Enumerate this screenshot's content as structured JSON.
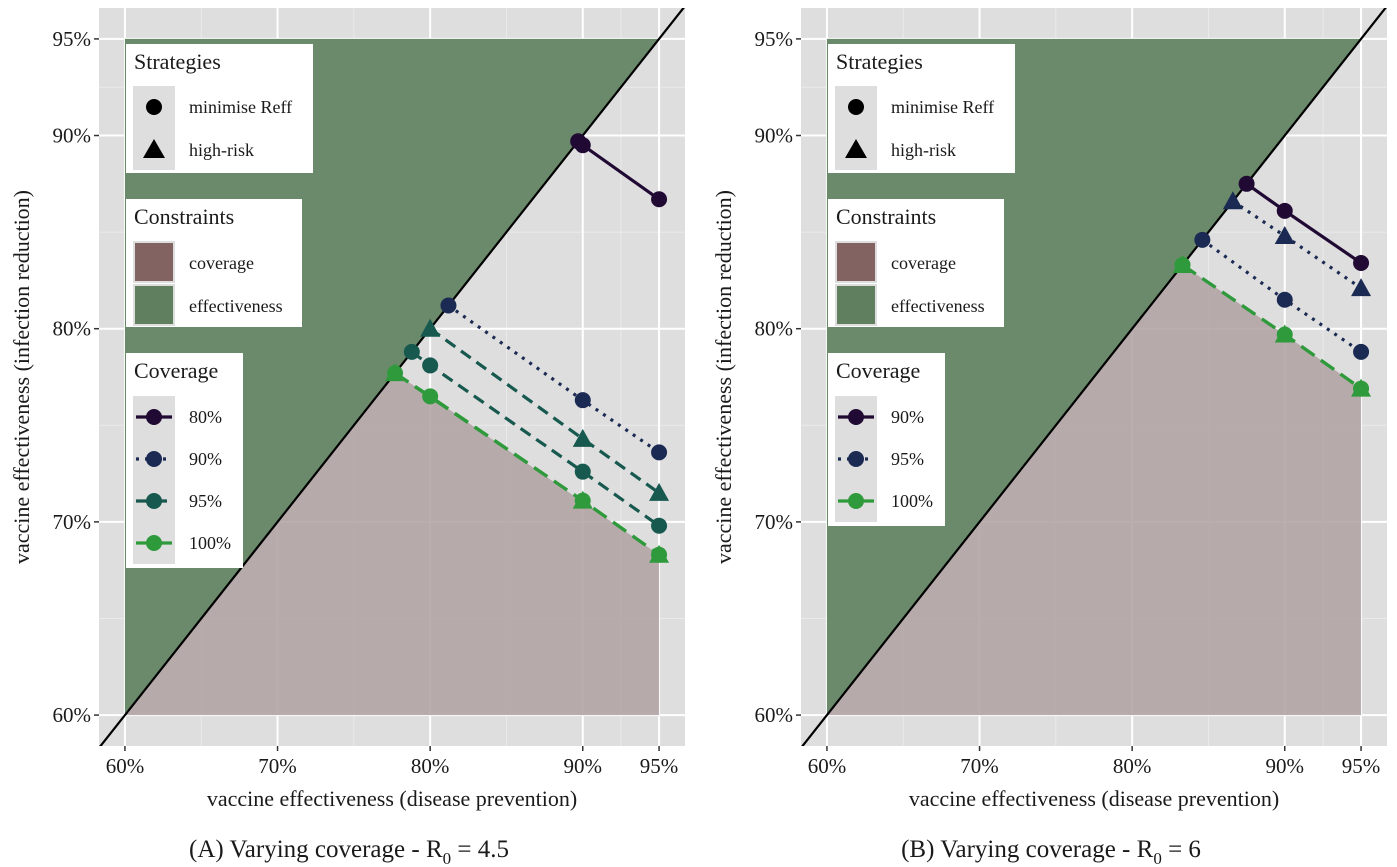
{
  "chart_data": [
    {
      "id": "A",
      "type": "line",
      "caption": {
        "prefix": "(A)  Varying coverage - R",
        "sub": "0",
        "suffix": " = 4.5"
      },
      "xlabel": "vaccine effectiveness (disease prevention)",
      "ylabel": "vaccine effectiveness (infection reduction)",
      "xlim": [
        58.3,
        96.7
      ],
      "ylim": [
        58.4,
        96.6
      ],
      "x_ticks": [
        60,
        70,
        80,
        90,
        95
      ],
      "x_tick_labels": [
        "60%",
        "70%",
        "80%",
        "90%",
        "95%"
      ],
      "y_ticks": [
        60,
        70,
        80,
        90,
        95
      ],
      "y_tick_labels": [
        "60%",
        "70%",
        "80%",
        "90%",
        "95%"
      ],
      "grid": true,
      "diagonal": "y = x",
      "constraint_regions": {
        "effectiveness": {
          "color": "#6b8a6b",
          "polygon": [
            [
              60,
              60
            ],
            [
              60,
              95
            ],
            [
              95,
              95
            ]
          ]
        },
        "coverage": {
          "color": "#b0a3a3",
          "polygon": [
            [
              60,
              60
            ],
            [
              77.7,
              77.7
            ],
            [
              80,
              76.5
            ],
            [
              95,
              68.3
            ],
            [
              95,
              60
            ]
          ]
        }
      },
      "series": [
        {
          "name": "80%",
          "color": "#200a33",
          "dash": "solid",
          "minimise": [
            [
              89.7,
              89.7
            ],
            [
              90,
              89.5
            ],
            [
              95,
              86.7
            ]
          ],
          "highrisk": []
        },
        {
          "name": "90%",
          "color": "#1b2a52",
          "dash": "dotted",
          "minimise": [
            [
              81.2,
              81.2
            ],
            [
              90,
              76.3
            ],
            [
              95,
              73.6
            ]
          ],
          "highrisk": []
        },
        {
          "name": "95%",
          "color": "#17594f",
          "dash": "dashed",
          "minimise": [
            [
              78.8,
              78.8
            ],
            [
              80,
              78.1
            ],
            [
              90,
              72.6
            ],
            [
              95,
              69.8
            ]
          ],
          "highrisk": [
            [
              80,
              80
            ],
            [
              90,
              74.3
            ],
            [
              95,
              71.5
            ]
          ]
        },
        {
          "name": "100%",
          "color": "#2f9a3c",
          "dash": "longdash",
          "minimise": [
            [
              77.7,
              77.7
            ],
            [
              80,
              76.5
            ],
            [
              90,
              71.1
            ],
            [
              95,
              68.3
            ]
          ],
          "highrisk": [
            [
              77.7,
              77.7
            ],
            [
              90,
              71.1
            ],
            [
              95,
              68.3
            ]
          ]
        }
      ],
      "legends": {
        "strategies": {
          "title": "Strategies",
          "items": [
            "minimise Reff",
            "high-risk"
          ]
        },
        "constraints": {
          "title": "Constraints",
          "items": [
            {
              "label": "coverage",
              "color": "#836262"
            },
            {
              "label": "effectiveness",
              "color": "#5f7f5f"
            }
          ]
        },
        "coverage": {
          "title": "Coverage"
        }
      }
    },
    {
      "id": "B",
      "type": "line",
      "caption": {
        "prefix": "(B)  Varying coverage - R",
        "sub": "0",
        "suffix": " = 6"
      },
      "xlabel": "vaccine effectiveness (disease prevention)",
      "ylabel": "vaccine effectiveness (infection reduction)",
      "xlim": [
        58.3,
        96.7
      ],
      "ylim": [
        58.4,
        96.6
      ],
      "x_ticks": [
        60,
        70,
        80,
        90,
        95
      ],
      "x_tick_labels": [
        "60%",
        "70%",
        "80%",
        "90%",
        "95%"
      ],
      "y_ticks": [
        60,
        70,
        80,
        90,
        95
      ],
      "y_tick_labels": [
        "60%",
        "70%",
        "80%",
        "90%",
        "95%"
      ],
      "grid": true,
      "diagonal": "y = x",
      "constraint_regions": {
        "effectiveness": {
          "color": "#6b8a6b",
          "polygon": [
            [
              60,
              60
            ],
            [
              60,
              95
            ],
            [
              95,
              95
            ]
          ]
        },
        "coverage": {
          "color": "#b0a3a3",
          "polygon": [
            [
              60,
              60
            ],
            [
              83.3,
              83.3
            ],
            [
              90,
              79.7
            ],
            [
              95,
              76.9
            ],
            [
              95,
              60
            ]
          ]
        }
      },
      "series": [
        {
          "name": "90%",
          "color": "#200a33",
          "dash": "solid",
          "minimise": [
            [
              87.5,
              87.5
            ],
            [
              90,
              86.1
            ],
            [
              95,
              83.4
            ]
          ],
          "highrisk": []
        },
        {
          "name": "95%",
          "color": "#1b2a52",
          "dash": "dotted",
          "minimise": [
            [
              84.6,
              84.6
            ],
            [
              90,
              81.5
            ],
            [
              95,
              78.8
            ]
          ],
          "highrisk": [
            [
              86.6,
              86.6
            ],
            [
              90,
              84.8
            ],
            [
              95,
              82.1
            ]
          ]
        },
        {
          "name": "100%",
          "color": "#2f9a3c",
          "dash": "longdash",
          "minimise": [
            [
              83.3,
              83.3
            ],
            [
              90,
              79.7
            ],
            [
              95,
              76.9
            ]
          ],
          "highrisk": [
            [
              83.3,
              83.3
            ],
            [
              90,
              79.7
            ],
            [
              95,
              76.9
            ]
          ]
        }
      ],
      "legends": {
        "strategies": {
          "title": "Strategies",
          "items": [
            "minimise Reff",
            "high-risk"
          ]
        },
        "constraints": {
          "title": "Constraints",
          "items": [
            {
              "label": "coverage",
              "color": "#836262"
            },
            {
              "label": "effectiveness",
              "color": "#5f7f5f"
            }
          ]
        },
        "coverage": {
          "title": "Coverage"
        }
      }
    }
  ]
}
